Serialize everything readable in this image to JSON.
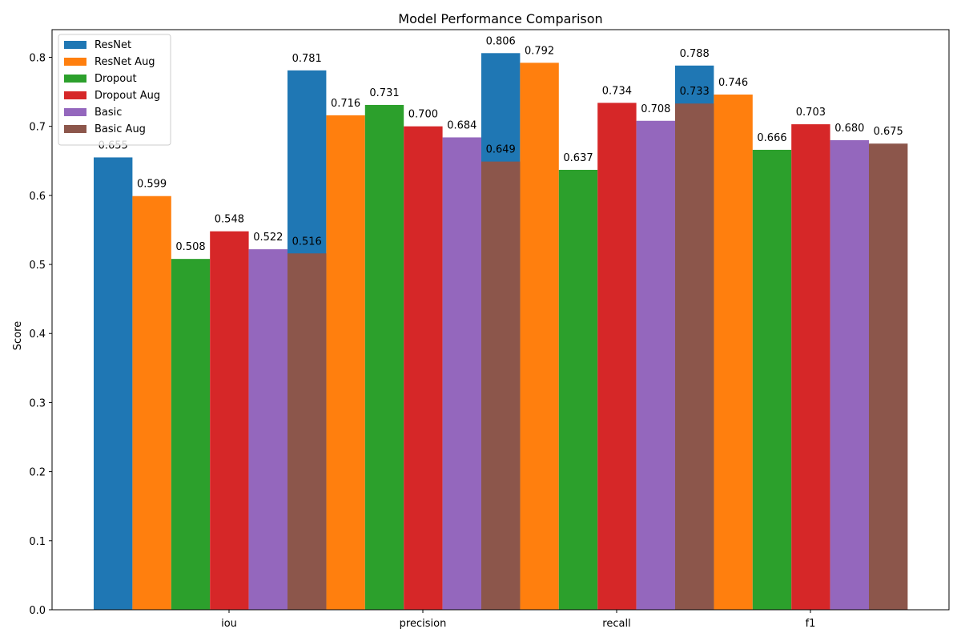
{
  "chart_data": {
    "type": "bar",
    "title": "Model Performance Comparison",
    "xlabel": "",
    "ylabel": "Score",
    "categories": [
      "iou",
      "precision",
      "recall",
      "f1"
    ],
    "ylim": [
      0,
      0.84
    ],
    "yticks": [
      "0.0",
      "0.1",
      "0.2",
      "0.3",
      "0.4",
      "0.5",
      "0.6",
      "0.7",
      "0.8"
    ],
    "grid": false,
    "legend_position": "top-left",
    "series": [
      {
        "name": "ResNet",
        "color": "#1f77b4",
        "values": [
          0.655,
          0.781,
          0.806,
          0.788
        ]
      },
      {
        "name": "ResNet Aug",
        "color": "#ff7f0e",
        "values": [
          0.599,
          0.716,
          0.792,
          0.746
        ]
      },
      {
        "name": "Dropout",
        "color": "#2ca02c",
        "values": [
          0.508,
          0.731,
          0.637,
          0.666
        ]
      },
      {
        "name": "Dropout Aug",
        "color": "#d62728",
        "values": [
          0.548,
          0.7,
          0.734,
          0.703
        ]
      },
      {
        "name": "Basic",
        "color": "#9467bd",
        "values": [
          0.522,
          0.684,
          0.708,
          0.68
        ]
      },
      {
        "name": "Basic Aug",
        "color": "#8c564b",
        "values": [
          0.516,
          0.649,
          0.733,
          0.675
        ]
      }
    ],
    "value_labels": [
      [
        "0.655",
        "0.781",
        "0.806",
        "0.788"
      ],
      [
        "0.599",
        "0.716",
        "0.792",
        "0.746"
      ],
      [
        "0.508",
        "0.731",
        "0.637",
        "0.666"
      ],
      [
        "0.548",
        "0.700",
        "0.734",
        "0.703"
      ],
      [
        "0.522",
        "0.684",
        "0.708",
        "0.680"
      ],
      [
        "0.516",
        "0.649",
        "0.733",
        "0.675"
      ]
    ]
  }
}
